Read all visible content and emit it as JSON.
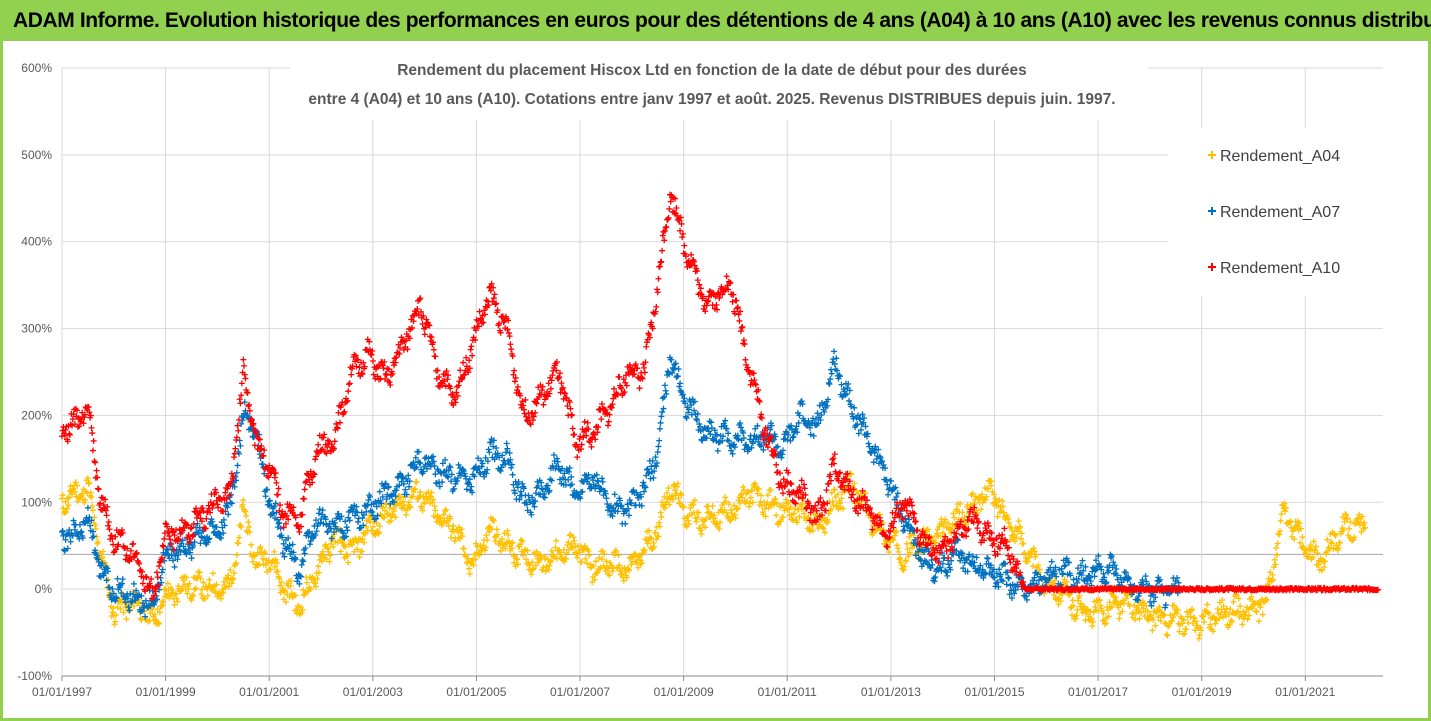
{
  "banner": {
    "title": "ADAM Informe. Evolution historique des performances en euros pour des détentions de 4 ans (A04) à 10 ans (A10) avec les revenus connus distribués"
  },
  "chart_data": {
    "type": "scatter",
    "title_line1": "Rendement du placement Hiscox Ltd en fonction de la date de début pour des durées",
    "title_line2": "entre 4 (A04) et 10 ans (A10). Cotations entre janv 1997 et août. 2025. Revenus DISTRIBUES depuis juin. 1997.",
    "xlabel": "",
    "ylabel": "",
    "x_ticks": [
      "01/01/1997",
      "01/01/1999",
      "01/01/2001",
      "01/01/2003",
      "01/01/2005",
      "01/01/2007",
      "01/01/2009",
      "01/01/2011",
      "01/01/2013",
      "01/01/2015",
      "01/01/2017",
      "01/01/2019",
      "01/01/2021"
    ],
    "y_ticks": [
      "-100%",
      "0%",
      "100%",
      "200%",
      "300%",
      "400%",
      "500%",
      "600%"
    ],
    "ylim": [
      -100,
      600
    ],
    "xlim": [
      "1997-01-01",
      "2022-07-01"
    ],
    "grid": true,
    "legend_position": "right",
    "marker": "+",
    "series": [
      {
        "name": "Rendement_A04",
        "color": "#ffc000",
        "points": [
          [
            "1997-01",
            100
          ],
          [
            "1997-04",
            110
          ],
          [
            "1997-07",
            115
          ],
          [
            "1997-10",
            40
          ],
          [
            "1998-01",
            -25
          ],
          [
            "1998-06",
            -15
          ],
          [
            "1998-10",
            -35
          ],
          [
            "1999-01",
            -10
          ],
          [
            "1999-06",
            5
          ],
          [
            "2000-01",
            0
          ],
          [
            "2000-04",
            5
          ],
          [
            "2000-07",
            90
          ],
          [
            "2000-10",
            30
          ],
          [
            "2001-01",
            40
          ],
          [
            "2001-04",
            5
          ],
          [
            "2001-08",
            -20
          ],
          [
            "2001-12",
            20
          ],
          [
            "2002-04",
            60
          ],
          [
            "2002-08",
            40
          ],
          [
            "2002-12",
            70
          ],
          [
            "2003-04",
            85
          ],
          [
            "2003-08",
            100
          ],
          [
            "2003-12",
            110
          ],
          [
            "2004-04",
            85
          ],
          [
            "2004-08",
            70
          ],
          [
            "2004-12",
            25
          ],
          [
            "2005-04",
            70
          ],
          [
            "2005-08",
            50
          ],
          [
            "2005-12",
            40
          ],
          [
            "2006-04",
            30
          ],
          [
            "2006-08",
            40
          ],
          [
            "2006-12",
            50
          ],
          [
            "2007-04",
            25
          ],
          [
            "2007-08",
            30
          ],
          [
            "2007-12",
            20
          ],
          [
            "2008-04",
            45
          ],
          [
            "2008-07",
            70
          ],
          [
            "2008-10",
            120
          ],
          [
            "2009-01",
            90
          ],
          [
            "2009-06",
            80
          ],
          [
            "2009-12",
            90
          ],
          [
            "2010-04",
            110
          ],
          [
            "2010-08",
            100
          ],
          [
            "2010-12",
            90
          ],
          [
            "2011-04",
            90
          ],
          [
            "2011-08",
            70
          ],
          [
            "2011-12",
            100
          ],
          [
            "2012-04",
            120
          ],
          [
            "2012-08",
            85
          ],
          [
            "2012-12",
            60
          ],
          [
            "2013-04",
            40
          ],
          [
            "2013-08",
            55
          ],
          [
            "2013-12",
            60
          ],
          [
            "2014-04",
            80
          ],
          [
            "2014-08",
            95
          ],
          [
            "2014-12",
            115
          ],
          [
            "2015-04",
            80
          ],
          [
            "2015-08",
            50
          ],
          [
            "2015-12",
            10
          ],
          [
            "2016-04",
            0
          ],
          [
            "2016-08",
            -20
          ],
          [
            "2016-12",
            -30
          ],
          [
            "2017-04",
            -20
          ],
          [
            "2017-08",
            -15
          ],
          [
            "2017-12",
            -30
          ],
          [
            "2018-04",
            -35
          ],
          [
            "2018-08",
            -35
          ],
          [
            "2018-12",
            -40
          ],
          [
            "2019-04",
            -30
          ],
          [
            "2019-08",
            -25
          ],
          [
            "2019-12",
            -25
          ],
          [
            "2020-04",
            -15
          ],
          [
            "2020-08",
            90
          ],
          [
            "2020-12",
            55
          ],
          [
            "2021-04",
            30
          ],
          [
            "2021-08",
            60
          ],
          [
            "2021-12",
            75
          ],
          [
            "2022-03",
            65
          ]
        ]
      },
      {
        "name": "Rendement_A07",
        "color": "#0070c0",
        "points": [
          [
            "1997-01",
            60
          ],
          [
            "1997-04",
            65
          ],
          [
            "1997-07",
            80
          ],
          [
            "1997-10",
            20
          ],
          [
            "1998-01",
            0
          ],
          [
            "1998-06",
            -10
          ],
          [
            "1998-10",
            -20
          ],
          [
            "1999-01",
            40
          ],
          [
            "1999-06",
            50
          ],
          [
            "2000-01",
            70
          ],
          [
            "2000-04",
            90
          ],
          [
            "2000-07",
            200
          ],
          [
            "2000-10",
            180
          ],
          [
            "2001-01",
            100
          ],
          [
            "2001-04",
            60
          ],
          [
            "2001-08",
            20
          ],
          [
            "2001-12",
            80
          ],
          [
            "2002-04",
            70
          ],
          [
            "2002-08",
            80
          ],
          [
            "2002-12",
            90
          ],
          [
            "2003-04",
            110
          ],
          [
            "2003-08",
            120
          ],
          [
            "2003-12",
            150
          ],
          [
            "2004-04",
            135
          ],
          [
            "2004-08",
            130
          ],
          [
            "2004-12",
            125
          ],
          [
            "2005-04",
            155
          ],
          [
            "2005-08",
            150
          ],
          [
            "2005-12",
            100
          ],
          [
            "2006-04",
            110
          ],
          [
            "2006-08",
            145
          ],
          [
            "2006-12",
            110
          ],
          [
            "2007-04",
            130
          ],
          [
            "2007-08",
            95
          ],
          [
            "2007-12",
            90
          ],
          [
            "2008-04",
            115
          ],
          [
            "2008-07",
            160
          ],
          [
            "2008-10",
            270
          ],
          [
            "2009-01",
            220
          ],
          [
            "2009-06",
            180
          ],
          [
            "2009-12",
            175
          ],
          [
            "2010-04",
            170
          ],
          [
            "2010-08",
            180
          ],
          [
            "2010-12",
            160
          ],
          [
            "2011-04",
            200
          ],
          [
            "2011-08",
            185
          ],
          [
            "2011-12",
            260
          ],
          [
            "2012-04",
            210
          ],
          [
            "2012-08",
            170
          ],
          [
            "2012-12",
            130
          ],
          [
            "2013-04",
            80
          ],
          [
            "2013-08",
            40
          ],
          [
            "2013-12",
            20
          ],
          [
            "2014-04",
            40
          ],
          [
            "2014-08",
            30
          ],
          [
            "2014-12",
            20
          ],
          [
            "2015-04",
            10
          ],
          [
            "2015-08",
            0
          ],
          [
            "2015-12",
            10
          ],
          [
            "2016-04",
            20
          ],
          [
            "2016-08",
            15
          ],
          [
            "2016-12",
            20
          ],
          [
            "2017-04",
            25
          ],
          [
            "2017-08",
            5
          ],
          [
            "2017-12",
            0
          ],
          [
            "2018-04",
            -5
          ],
          [
            "2018-08",
            0
          ]
        ]
      },
      {
        "name": "Rendement_A10",
        "color": "#ff0000",
        "points": [
          [
            "1997-01",
            185
          ],
          [
            "1997-04",
            190
          ],
          [
            "1997-07",
            210
          ],
          [
            "1997-10",
            100
          ],
          [
            "1998-01",
            60
          ],
          [
            "1998-06",
            40
          ],
          [
            "1998-10",
            -10
          ],
          [
            "1999-01",
            60
          ],
          [
            "1999-06",
            70
          ],
          [
            "2000-01",
            100
          ],
          [
            "2000-04",
            110
          ],
          [
            "2000-07",
            250
          ],
          [
            "2000-10",
            170
          ],
          [
            "2001-01",
            140
          ],
          [
            "2001-04",
            90
          ],
          [
            "2001-08",
            80
          ],
          [
            "2001-12",
            160
          ],
          [
            "2002-04",
            170
          ],
          [
            "2002-08",
            250
          ],
          [
            "2002-12",
            270
          ],
          [
            "2003-04",
            240
          ],
          [
            "2003-08",
            280
          ],
          [
            "2003-12",
            330
          ],
          [
            "2004-04",
            250
          ],
          [
            "2004-08",
            220
          ],
          [
            "2004-12",
            280
          ],
          [
            "2005-04",
            340
          ],
          [
            "2005-08",
            300
          ],
          [
            "2005-12",
            200
          ],
          [
            "2006-04",
            220
          ],
          [
            "2006-08",
            250
          ],
          [
            "2006-12",
            170
          ],
          [
            "2007-04",
            180
          ],
          [
            "2007-08",
            210
          ],
          [
            "2007-12",
            250
          ],
          [
            "2008-04",
            250
          ],
          [
            "2008-07",
            350
          ],
          [
            "2008-10",
            460
          ],
          [
            "2009-01",
            400
          ],
          [
            "2009-06",
            330
          ],
          [
            "2009-12",
            350
          ],
          [
            "2010-04",
            260
          ],
          [
            "2010-08",
            180
          ],
          [
            "2010-12",
            120
          ],
          [
            "2011-04",
            110
          ],
          [
            "2011-08",
            80
          ],
          [
            "2011-12",
            140
          ],
          [
            "2012-04",
            110
          ],
          [
            "2012-08",
            90
          ],
          [
            "2012-12",
            60
          ],
          [
            "2013-04",
            100
          ],
          [
            "2013-08",
            60
          ],
          [
            "2013-12",
            40
          ],
          [
            "2014-04",
            60
          ],
          [
            "2014-08",
            80
          ],
          [
            "2014-12",
            60
          ],
          [
            "2015-04",
            50
          ],
          [
            "2015-08",
            0
          ],
          [
            "2016-04",
            0
          ],
          [
            "2017-01",
            0
          ],
          [
            "2018-01",
            0
          ],
          [
            "2019-01",
            0
          ],
          [
            "2020-01",
            0
          ],
          [
            "2021-01",
            0
          ],
          [
            "2022-06",
            0
          ]
        ]
      }
    ]
  }
}
